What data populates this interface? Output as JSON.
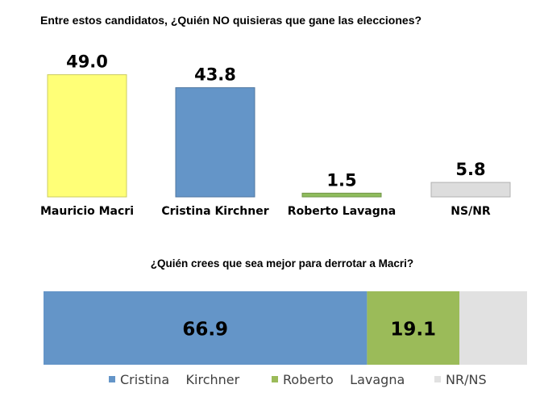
{
  "chart_data": [
    {
      "type": "bar",
      "title": "Entre estos candidatos, ¿Quién NO quisieras que gane las elecciones?",
      "categories": [
        "Mauricio Macri",
        "Cristina Kirchner",
        "Roberto Lavagna",
        "NS/NR"
      ],
      "values": [
        49.0,
        43.8,
        1.5,
        5.8
      ],
      "value_labels": [
        "49.0",
        "43.8",
        "1.5",
        "5.8"
      ],
      "colors": [
        "#ffff77",
        "#6495c8",
        "#8fbc5c",
        "#dddddd"
      ],
      "ylim": [
        0,
        50
      ]
    },
    {
      "type": "bar",
      "stacked": true,
      "orientation": "horizontal",
      "title": "¿Quién crees que sea mejor para derrotar a Macri?",
      "series": [
        {
          "name": "Cristina    Kirchner",
          "value": 66.9,
          "label": "66.9",
          "color": "#6495c8"
        },
        {
          "name": "Roberto    Lavagna",
          "value": 19.1,
          "label": "19.1",
          "color": "#9bbb59"
        },
        {
          "name": "NR/NS",
          "value": 14.0,
          "label": "",
          "color": "#e1e1e1"
        }
      ],
      "legend": "bottom"
    }
  ]
}
